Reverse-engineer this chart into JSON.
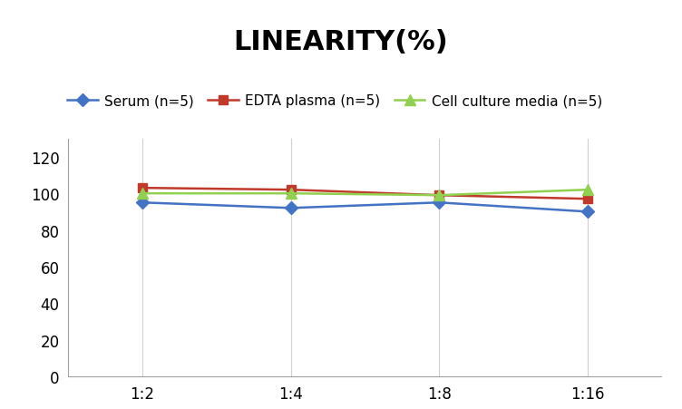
{
  "title": "LINEARITY(%)",
  "x_labels": [
    "1:2",
    "1:4",
    "1:8",
    "1:16"
  ],
  "series": [
    {
      "label": "Serum (n=5)",
      "values": [
        95,
        92,
        95,
        90
      ],
      "color": "#4472C4",
      "marker": "D",
      "markersize": 7,
      "linewidth": 1.8
    },
    {
      "label": "EDTA plasma (n=5)",
      "values": [
        103,
        102,
        99,
        97
      ],
      "color": "#C0392B",
      "marker": "s",
      "markersize": 7,
      "linewidth": 1.8
    },
    {
      "label": "Cell culture media (n=5)",
      "values": [
        100,
        100,
        99,
        102
      ],
      "color": "#92D050",
      "marker": "^",
      "markersize": 8,
      "linewidth": 1.8
    }
  ],
  "ylim": [
    0,
    130
  ],
  "yticks": [
    0,
    20,
    40,
    60,
    80,
    100,
    120
  ],
  "xlabel": "",
  "ylabel": "",
  "title_fontsize": 22,
  "title_fontweight": "bold",
  "legend_fontsize": 11,
  "tick_fontsize": 12,
  "background_color": "#ffffff",
  "grid_color": "#d0d0d0",
  "spine_color": "#a0a0a0"
}
